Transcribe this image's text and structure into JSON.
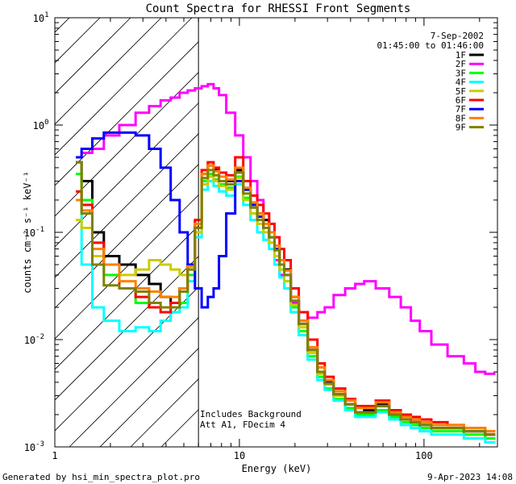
{
  "chart_data": {
    "type": "line",
    "title": "Count Spectra for RHESSI Front Segments",
    "xlabel": "Energy (keV)",
    "ylabel": "counts cm⁻² s⁻¹ keV⁻¹",
    "xscale": "log",
    "yscale": "log",
    "xlim": [
      1,
      250
    ],
    "ylim": [
      0.001,
      10
    ],
    "x_tick_labels": [
      {
        "value": 1,
        "label": "1"
      },
      {
        "value": 10,
        "label": "10"
      },
      {
        "value": 100,
        "label": "100"
      }
    ],
    "y_tick_labels": [
      {
        "value": 0.001,
        "base": "10",
        "exp": "-3"
      },
      {
        "value": 0.01,
        "base": "10",
        "exp": "-2"
      },
      {
        "value": 0.1,
        "base": "10",
        "exp": "-1"
      },
      {
        "value": 1,
        "base": "10",
        "exp": "0"
      },
      {
        "value": 10,
        "base": "10",
        "exp": "1"
      }
    ],
    "legend_position": "top-right",
    "date": "7-Sep-2002",
    "time_range": "01:45:00 to 01:46:00",
    "excluded_region_keV": [
      1,
      6
    ],
    "annotations": [
      "Includes Background",
      "Att A1, FDecim 4"
    ],
    "series": [
      {
        "name": "1F",
        "color": "#000000",
        "x": [
          1.3,
          1.5,
          1.7,
          2.0,
          2.5,
          3.0,
          3.5,
          4.0,
          4.5,
          5.0,
          5.5,
          6.0,
          6.5,
          7.0,
          7.5,
          8.0,
          9.0,
          10.0,
          11.0,
          12.0,
          13.0,
          14.0,
          15.0,
          16.0,
          17.0,
          18.0,
          20.0,
          22.0,
          25.0,
          28.0,
          30.0,
          35.0,
          40.0,
          45.0,
          50.0,
          60.0,
          70.0,
          80.0,
          90.0,
          100.0,
          120.0,
          150.0,
          180.0,
          200.0,
          230.0
        ],
        "y": [
          0.45,
          0.3,
          0.1,
          0.06,
          0.05,
          0.04,
          0.033,
          0.025,
          0.022,
          0.03,
          0.05,
          0.12,
          0.35,
          0.42,
          0.38,
          0.33,
          0.3,
          0.38,
          0.25,
          0.18,
          0.15,
          0.13,
          0.1,
          0.07,
          0.055,
          0.045,
          0.025,
          0.015,
          0.008,
          0.005,
          0.004,
          0.003,
          0.0025,
          0.002,
          0.0022,
          0.0025,
          0.002,
          0.0018,
          0.0017,
          0.0016,
          0.0015,
          0.0015,
          0.0014,
          0.0014,
          0.0013
        ]
      },
      {
        "name": "2F",
        "color": "#ff00ff",
        "x": [
          1.3,
          1.5,
          1.7,
          2.0,
          2.5,
          3.0,
          3.5,
          4.0,
          4.5,
          5.0,
          5.5,
          6.0,
          6.5,
          7.0,
          7.5,
          8.0,
          9.0,
          10.0,
          11.0,
          12.0,
          13.0,
          14.0,
          15.0,
          16.0,
          17.0,
          18.0,
          20.0,
          22.0,
          25.0,
          28.0,
          30.0,
          35.0,
          40.0,
          45.0,
          50.0,
          60.0,
          70.0,
          80.0,
          90.0,
          100.0,
          120.0,
          150.0,
          180.0,
          200.0,
          230.0
        ],
        "y": [
          0.5,
          0.55,
          0.6,
          0.8,
          1.0,
          1.3,
          1.5,
          1.7,
          1.8,
          2.0,
          2.1,
          2.2,
          2.3,
          2.4,
          2.2,
          1.9,
          1.3,
          0.8,
          0.5,
          0.3,
          0.2,
          0.12,
          0.08,
          0.055,
          0.04,
          0.03,
          0.022,
          0.018,
          0.016,
          0.018,
          0.02,
          0.026,
          0.03,
          0.033,
          0.035,
          0.03,
          0.025,
          0.02,
          0.015,
          0.012,
          0.009,
          0.007,
          0.006,
          0.005,
          0.0048
        ]
      },
      {
        "name": "3F",
        "color": "#00ff00",
        "x": [
          1.3,
          1.5,
          1.7,
          2.0,
          2.5,
          3.0,
          3.5,
          4.0,
          4.5,
          5.0,
          5.5,
          6.0,
          6.5,
          7.0,
          7.5,
          8.0,
          9.0,
          10.0,
          11.0,
          12.0,
          13.0,
          14.0,
          15.0,
          16.0,
          17.0,
          18.0,
          20.0,
          22.0,
          25.0,
          28.0,
          30.0,
          35.0,
          40.0,
          45.0,
          50.0,
          60.0,
          70.0,
          80.0,
          90.0,
          100.0,
          120.0,
          150.0,
          180.0,
          200.0,
          230.0
        ],
        "y": [
          0.35,
          0.2,
          0.05,
          0.04,
          0.03,
          0.022,
          0.02,
          0.02,
          0.018,
          0.022,
          0.04,
          0.11,
          0.3,
          0.35,
          0.31,
          0.28,
          0.26,
          0.33,
          0.21,
          0.15,
          0.12,
          0.1,
          0.08,
          0.06,
          0.045,
          0.035,
          0.02,
          0.012,
          0.007,
          0.0045,
          0.0035,
          0.0028,
          0.0023,
          0.002,
          0.002,
          0.0022,
          0.0019,
          0.0017,
          0.0016,
          0.0015,
          0.0014,
          0.0014,
          0.0013,
          0.0013,
          0.0012
        ]
      },
      {
        "name": "4F",
        "color": "#00ffff",
        "x": [
          1.3,
          1.5,
          1.7,
          2.0,
          2.5,
          3.0,
          3.5,
          4.0,
          4.5,
          5.0,
          5.5,
          6.0,
          6.5,
          7.0,
          7.5,
          8.0,
          9.0,
          10.0,
          11.0,
          12.0,
          13.0,
          14.0,
          15.0,
          16.0,
          17.0,
          18.0,
          20.0,
          22.0,
          25.0,
          28.0,
          30.0,
          35.0,
          40.0,
          45.0,
          50.0,
          60.0,
          70.0,
          80.0,
          90.0,
          100.0,
          120.0,
          150.0,
          180.0,
          200.0,
          230.0
        ],
        "y": [
          0.2,
          0.05,
          0.02,
          0.015,
          0.012,
          0.013,
          0.012,
          0.015,
          0.018,
          0.02,
          0.035,
          0.09,
          0.25,
          0.3,
          0.27,
          0.24,
          0.22,
          0.28,
          0.18,
          0.13,
          0.1,
          0.085,
          0.07,
          0.05,
          0.038,
          0.03,
          0.018,
          0.011,
          0.0065,
          0.0042,
          0.0034,
          0.0027,
          0.0022,
          0.0019,
          0.0019,
          0.0021,
          0.0018,
          0.0016,
          0.0015,
          0.0014,
          0.0013,
          0.0013,
          0.0012,
          0.0012,
          0.0011
        ]
      },
      {
        "name": "5F",
        "color": "#cccc00",
        "x": [
          1.3,
          1.5,
          1.7,
          2.0,
          2.5,
          3.0,
          3.5,
          4.0,
          4.5,
          5.0,
          5.5,
          6.0,
          6.5,
          7.0,
          7.5,
          8.0,
          9.0,
          10.0,
          11.0,
          12.0,
          13.0,
          14.0,
          15.0,
          16.0,
          17.0,
          18.0,
          20.0,
          22.0,
          25.0,
          28.0,
          30.0,
          35.0,
          40.0,
          45.0,
          50.0,
          60.0,
          70.0,
          80.0,
          90.0,
          100.0,
          120.0,
          150.0,
          180.0,
          200.0,
          230.0
        ],
        "y": [
          0.13,
          0.11,
          0.06,
          0.05,
          0.04,
          0.045,
          0.055,
          0.05,
          0.045,
          0.04,
          0.045,
          0.1,
          0.28,
          0.33,
          0.3,
          0.27,
          0.25,
          0.32,
          0.2,
          0.15,
          0.12,
          0.1,
          0.08,
          0.06,
          0.045,
          0.035,
          0.021,
          0.013,
          0.0075,
          0.0048,
          0.0038,
          0.003,
          0.0025,
          0.0021,
          0.0021,
          0.0024,
          0.002,
          0.0018,
          0.0017,
          0.0016,
          0.0015,
          0.0015,
          0.0014,
          0.0014,
          0.0013
        ]
      },
      {
        "name": "6F",
        "color": "#ff0000",
        "x": [
          1.3,
          1.5,
          1.7,
          2.0,
          2.5,
          3.0,
          3.5,
          4.0,
          4.5,
          5.0,
          5.5,
          6.0,
          6.5,
          7.0,
          7.5,
          8.0,
          9.0,
          10.0,
          11.0,
          12.0,
          13.0,
          14.0,
          15.0,
          16.0,
          17.0,
          18.0,
          20.0,
          22.0,
          25.0,
          28.0,
          30.0,
          35.0,
          40.0,
          45.0,
          50.0,
          60.0,
          70.0,
          80.0,
          90.0,
          100.0,
          120.0,
          150.0,
          180.0,
          200.0,
          230.0
        ],
        "y": [
          0.24,
          0.18,
          0.08,
          0.05,
          0.03,
          0.025,
          0.02,
          0.018,
          0.022,
          0.03,
          0.05,
          0.13,
          0.38,
          0.45,
          0.4,
          0.36,
          0.34,
          0.5,
          0.3,
          0.22,
          0.18,
          0.15,
          0.12,
          0.09,
          0.07,
          0.055,
          0.03,
          0.018,
          0.01,
          0.006,
          0.0045,
          0.0035,
          0.0028,
          0.0024,
          0.0024,
          0.0027,
          0.0022,
          0.002,
          0.0019,
          0.0018,
          0.0017,
          0.0016,
          0.0015,
          0.0015,
          0.0014
        ]
      },
      {
        "name": "7F",
        "color": "#0000ff",
        "x": [
          1.3,
          1.5,
          1.7,
          2.0,
          2.5,
          3.0,
          3.5,
          4.0,
          4.5,
          5.0,
          5.5,
          6.0,
          6.5,
          7.0,
          7.5,
          8.0,
          9.0,
          10.0,
          11.0,
          12.0,
          13.0,
          14.0,
          15.0,
          16.0,
          17.0,
          18.0,
          20.0,
          22.0,
          25.0,
          28.0,
          30.0,
          35.0,
          40.0,
          45.0,
          50.0,
          60.0,
          70.0,
          80.0,
          90.0,
          100.0,
          120.0,
          150.0,
          180.0,
          200.0,
          230.0
        ],
        "y": [
          0.5,
          0.6,
          0.75,
          0.85,
          0.85,
          0.8,
          0.6,
          0.4,
          0.2,
          0.1,
          0.05,
          0.03,
          0.02,
          0.025,
          0.03,
          0.06,
          0.15,
          0.3,
          0.25,
          0.18,
          0.14,
          0.11,
          0.09,
          0.07,
          0.05,
          0.04,
          0.023,
          0.014,
          0.008,
          0.005,
          0.004,
          0.0031,
          0.0025,
          0.0021,
          0.0021,
          0.0024,
          0.002,
          0.0018,
          0.0017,
          0.0016,
          0.0015,
          0.0015,
          0.0014,
          0.0014,
          0.0013
        ]
      },
      {
        "name": "8F",
        "color": "#ff8000",
        "x": [
          1.3,
          1.5,
          1.7,
          2.0,
          2.5,
          3.0,
          3.5,
          4.0,
          4.5,
          5.0,
          5.5,
          6.0,
          6.5,
          7.0,
          7.5,
          8.0,
          9.0,
          10.0,
          11.0,
          12.0,
          13.0,
          14.0,
          15.0,
          16.0,
          17.0,
          18.0,
          20.0,
          22.0,
          25.0,
          28.0,
          30.0,
          35.0,
          40.0,
          45.0,
          50.0,
          60.0,
          70.0,
          80.0,
          90.0,
          100.0,
          120.0,
          150.0,
          180.0,
          200.0,
          230.0
        ],
        "y": [
          0.2,
          0.16,
          0.07,
          0.05,
          0.035,
          0.03,
          0.028,
          0.025,
          0.025,
          0.03,
          0.048,
          0.12,
          0.35,
          0.42,
          0.37,
          0.33,
          0.31,
          0.4,
          0.26,
          0.19,
          0.15,
          0.12,
          0.1,
          0.075,
          0.055,
          0.044,
          0.025,
          0.015,
          0.0085,
          0.0055,
          0.0042,
          0.0033,
          0.0027,
          0.0023,
          0.0023,
          0.0026,
          0.0021,
          0.0019,
          0.0018,
          0.0017,
          0.0016,
          0.0016,
          0.0015,
          0.0015,
          0.0014
        ]
      },
      {
        "name": "9F",
        "color": "#808000",
        "x": [
          1.3,
          1.5,
          1.7,
          2.0,
          2.5,
          3.0,
          3.5,
          4.0,
          4.5,
          5.0,
          5.5,
          6.0,
          6.5,
          7.0,
          7.5,
          8.0,
          9.0,
          10.0,
          11.0,
          12.0,
          13.0,
          14.0,
          15.0,
          16.0,
          17.0,
          18.0,
          20.0,
          22.0,
          25.0,
          28.0,
          30.0,
          35.0,
          40.0,
          45.0,
          50.0,
          60.0,
          70.0,
          80.0,
          90.0,
          100.0,
          120.0,
          150.0,
          180.0,
          200.0,
          230.0
        ],
        "y": [
          0.45,
          0.15,
          0.05,
          0.032,
          0.03,
          0.028,
          0.022,
          0.02,
          0.02,
          0.028,
          0.045,
          0.11,
          0.32,
          0.38,
          0.34,
          0.3,
          0.28,
          0.36,
          0.23,
          0.17,
          0.13,
          0.11,
          0.09,
          0.068,
          0.05,
          0.04,
          0.023,
          0.014,
          0.008,
          0.005,
          0.0039,
          0.0031,
          0.0025,
          0.0021,
          0.0021,
          0.0024,
          0.002,
          0.0018,
          0.0017,
          0.0016,
          0.0015,
          0.0015,
          0.0014,
          0.0014,
          0.0013
        ]
      }
    ]
  },
  "footer": {
    "generated_by": "Generated by hsi_min_spectra_plot.pro",
    "timestamp": "9-Apr-2023 14:08"
  }
}
